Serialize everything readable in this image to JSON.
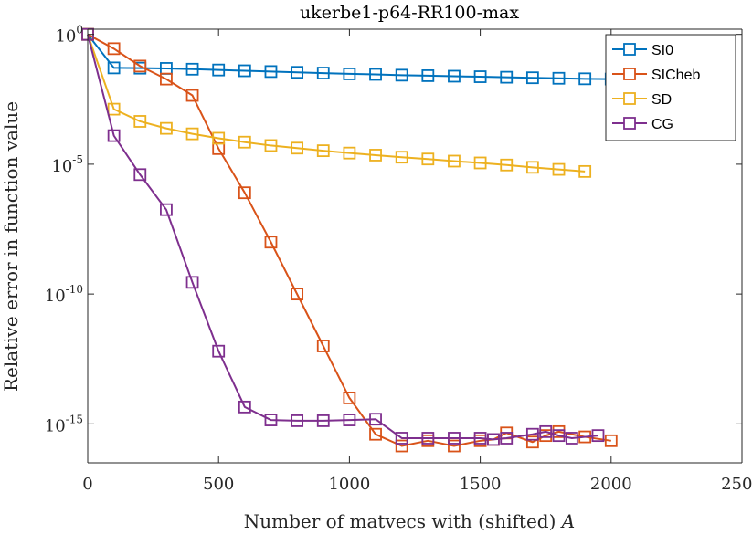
{
  "chart_data": {
    "type": "line",
    "title": "ukerbe1-p64-RR100-max",
    "xlabel": "Number of matvecs with (shifted) ",
    "xlabel_var": "A",
    "ylabel": "Relative error in function value",
    "xlim": [
      0,
      2500
    ],
    "ylim_log10": [
      -16.5,
      0.2
    ],
    "x_ticks": [
      "0",
      "500",
      "1000",
      "1500",
      "2000",
      "2500"
    ],
    "y_ticks": [
      {
        "base": "10",
        "exp": "0",
        "log": 0
      },
      {
        "base": "10",
        "exp": "-5",
        "log": -5
      },
      {
        "base": "10",
        "exp": "-10",
        "log": -10
      },
      {
        "base": "10",
        "exp": "-15",
        "log": -15
      }
    ],
    "legend_position": "top-right",
    "series": [
      {
        "name": "SI0",
        "color": "#0072BD",
        "x": [
          0,
          100,
          200,
          300,
          400,
          500,
          600,
          700,
          800,
          900,
          1000,
          1100,
          1200,
          1300,
          1400,
          1500,
          1600,
          1700,
          1800,
          1900,
          2000
        ],
        "log_y": [
          0,
          -1.29,
          -1.3,
          -1.31,
          -1.34,
          -1.37,
          -1.4,
          -1.43,
          -1.46,
          -1.49,
          -1.52,
          -1.54,
          -1.57,
          -1.59,
          -1.61,
          -1.63,
          -1.65,
          -1.67,
          -1.69,
          -1.71,
          -1.72
        ]
      },
      {
        "name": "SICheb",
        "color": "#D95319",
        "x": [
          0,
          100,
          200,
          300,
          400,
          500,
          600,
          700,
          800,
          900,
          1000,
          1100,
          1200,
          1300,
          1400,
          1500,
          1550,
          1600,
          1700,
          1750,
          1800,
          1900,
          2000
        ],
        "log_y": [
          0,
          -0.55,
          -1.22,
          -1.72,
          -2.35,
          -4.4,
          -6.1,
          -8.0,
          -10.0,
          -12.0,
          -14.0,
          -15.4,
          -15.85,
          -15.65,
          -15.85,
          -15.65,
          -15.6,
          -15.35,
          -15.7,
          -15.45,
          -15.3,
          -15.5,
          -15.65
        ]
      },
      {
        "name": "SD",
        "color": "#EDB120",
        "x": [
          0,
          100,
          200,
          300,
          400,
          500,
          600,
          700,
          800,
          900,
          1000,
          1100,
          1200,
          1300,
          1400,
          1500,
          1600,
          1700,
          1800,
          1900
        ],
        "log_y": [
          0,
          -2.88,
          -3.35,
          -3.62,
          -3.83,
          -4.0,
          -4.15,
          -4.28,
          -4.38,
          -4.48,
          -4.57,
          -4.65,
          -4.73,
          -4.8,
          -4.88,
          -4.95,
          -5.03,
          -5.12,
          -5.2,
          -5.28
        ]
      },
      {
        "name": "CG",
        "color": "#7E2F8E",
        "x": [
          0,
          100,
          200,
          300,
          400,
          500,
          600,
          700,
          800,
          900,
          1000,
          1100,
          1200,
          1300,
          1400,
          1500,
          1550,
          1600,
          1700,
          1750,
          1800,
          1850,
          1950
        ],
        "log_y": [
          0,
          -3.9,
          -5.4,
          -6.75,
          -9.55,
          -12.2,
          -14.35,
          -14.85,
          -14.88,
          -14.88,
          -14.85,
          -14.82,
          -15.55,
          -15.55,
          -15.55,
          -15.55,
          -15.6,
          -15.55,
          -15.4,
          -15.3,
          -15.45,
          -15.55,
          -15.45
        ]
      }
    ]
  }
}
